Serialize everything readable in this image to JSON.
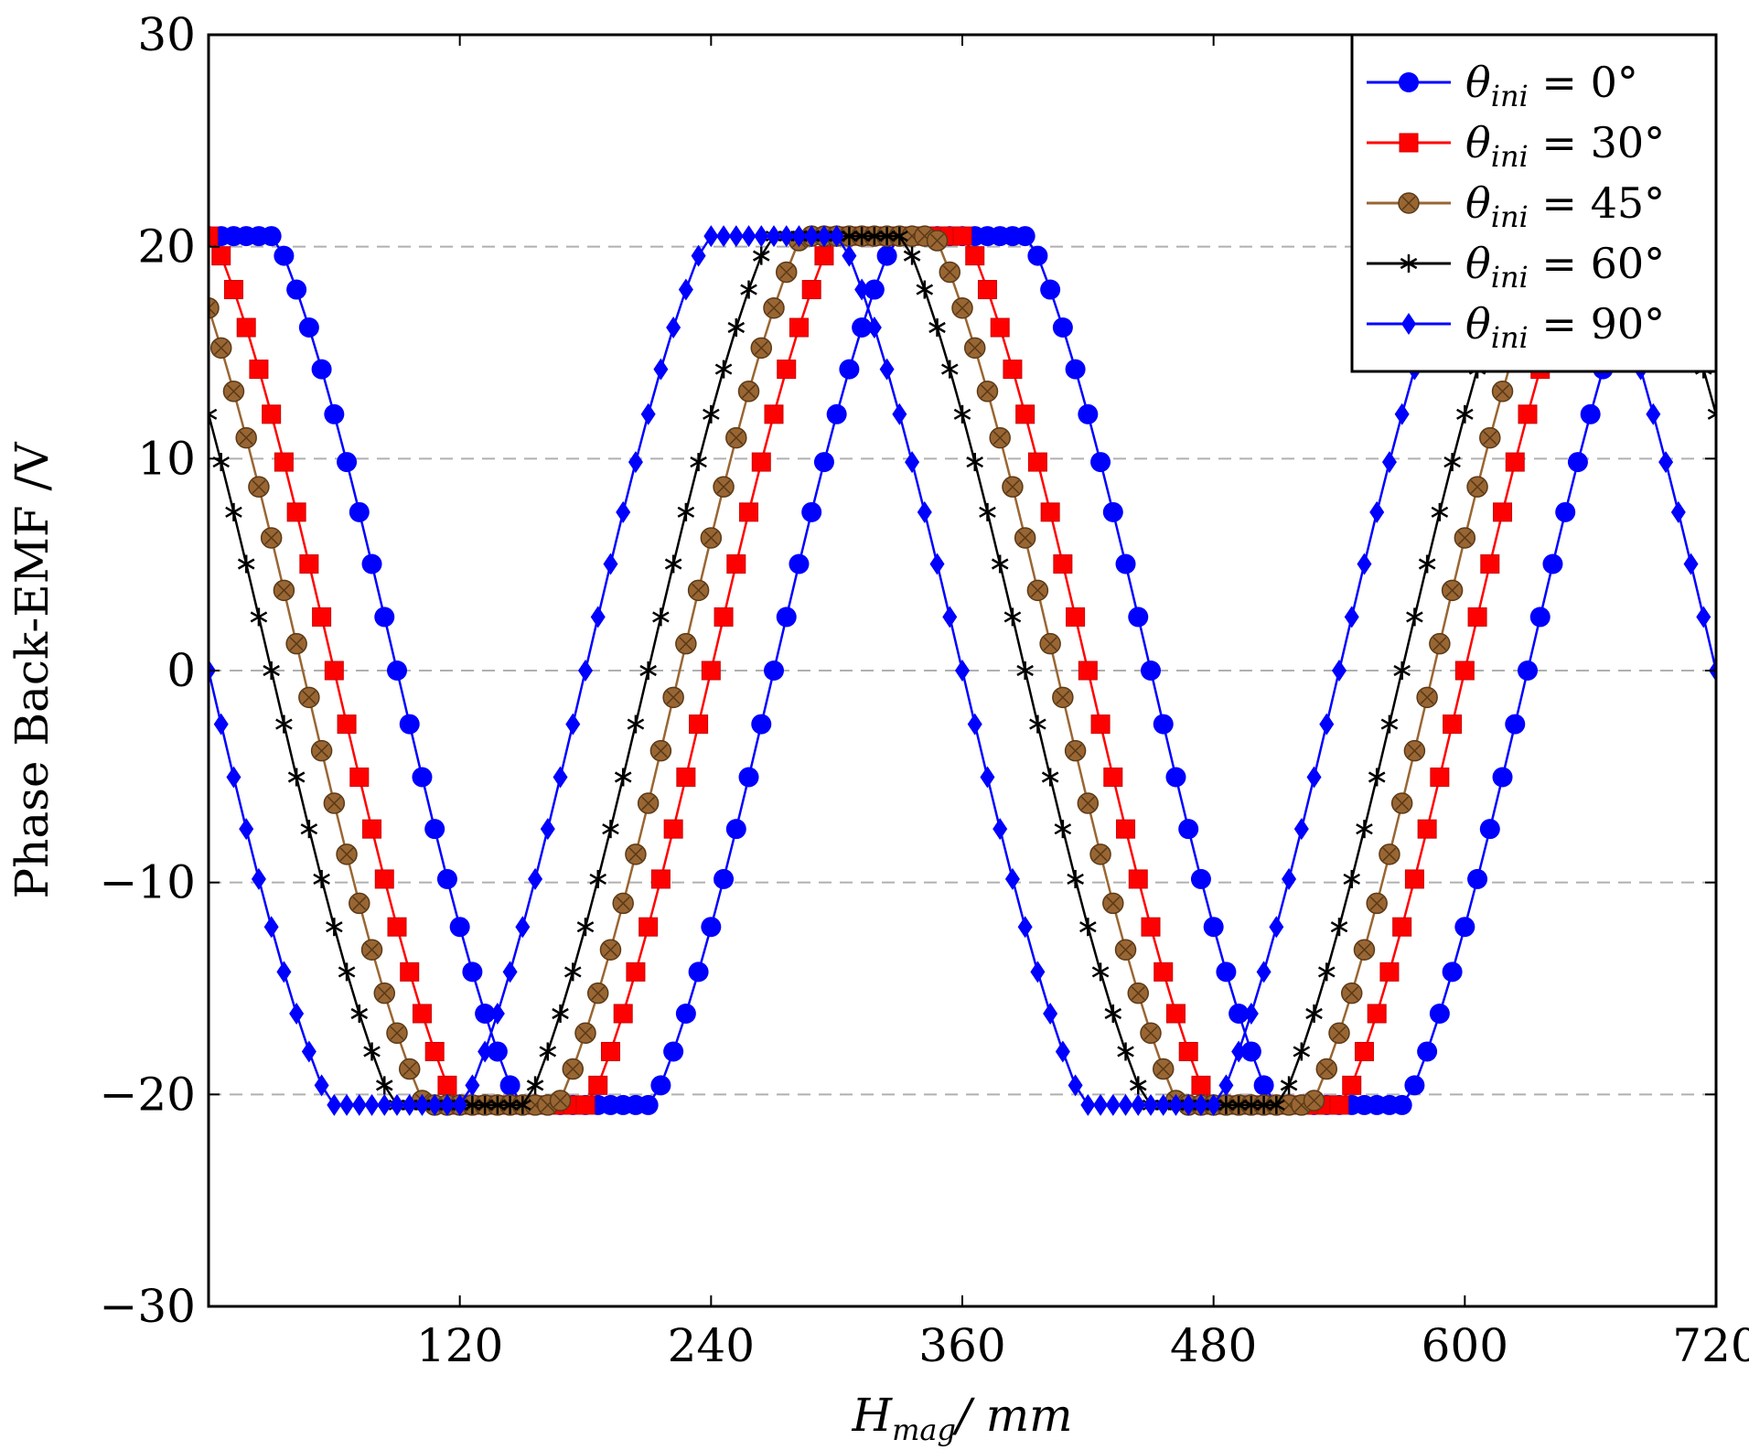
{
  "chart_data": {
    "type": "line",
    "xlabel": "H_mag / mm",
    "xlabel_main": "H",
    "xlabel_sub": "mag",
    "xlabel_unit": "/ mm",
    "ylabel": "Phase Back-EMF /V",
    "xlim": [
      0,
      720
    ],
    "ylim": [
      -30,
      30
    ],
    "xticks": [
      120,
      240,
      360,
      480,
      600,
      720
    ],
    "yticks": [
      30,
      20,
      10,
      0,
      -10,
      -20,
      -30
    ],
    "ytick_labels": [
      "30",
      "20",
      "10",
      "0",
      "−10",
      "−20",
      "−30"
    ],
    "grid": "horizontal dashed",
    "legend_position": "top-right",
    "series": [
      {
        "name": "θini = 0°",
        "label_main": "θ",
        "label_sub": "ini",
        "label_rest": " = 0°",
        "color": "#0000ff",
        "marker": "circle",
        "phase": 0
      },
      {
        "name": "θini = 30°",
        "label_main": "θ",
        "label_sub": "ini",
        "label_rest": " = 30°",
        "color": "#ff0000",
        "marker": "square",
        "phase": 30
      },
      {
        "name": "θini = 45°",
        "label_main": "θ",
        "label_sub": "ini",
        "label_rest": " = 45°",
        "color": "#996633",
        "marker": "otimes",
        "phase": 45
      },
      {
        "name": "θini = 60°",
        "label_main": "θ",
        "label_sub": "ini",
        "label_rest": " = 60°",
        "color": "#000000",
        "marker": "star",
        "phase": 60
      },
      {
        "name": "θini = 90°",
        "label_main": "θ",
        "label_sub": "ini",
        "label_rest": " = 90°",
        "color": "#0000ff",
        "marker": "diamond",
        "phase": 90
      }
    ],
    "wave": {
      "period_mm": 360,
      "amplitude_V": 20.5,
      "points_per_series": 121
    }
  }
}
